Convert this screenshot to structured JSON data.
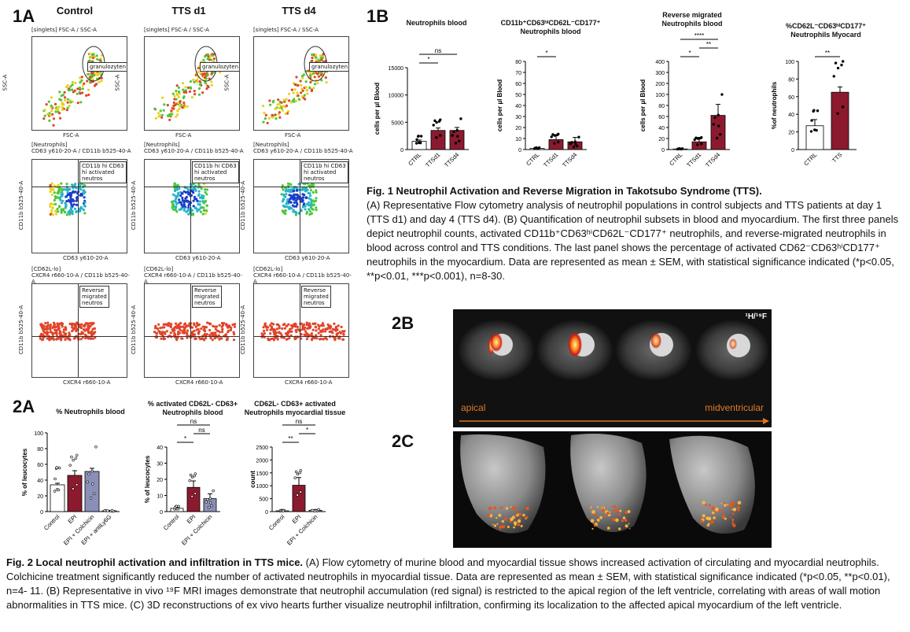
{
  "fig1": {
    "panel_a_label": "1A",
    "panel_b_label": "1B",
    "columns": [
      "Control",
      "TTS d1",
      "TTS d4"
    ],
    "flow_rows": [
      {
        "title": "[singlets] FSC-A / SSC-A",
        "x_label": "FSC-A",
        "y_label": "SSC-A",
        "gate": "granulozyten"
      },
      {
        "title": "[Neutrophils]\nCD63 y610-20-A / CD11b b525-40-A",
        "x_label": "CD63 y610-20-A",
        "y_label": "CD11b b525-40-A",
        "gate": "CD11b hi CD63\nhi activated\nneutros"
      },
      {
        "title": "[CD62L-lo]\nCXCR4 r660-10-A / CD11b b525-40-\nA",
        "x_label": "CXCR4 r660-10-A",
        "y_label": "CD11b b525-40-A",
        "gate": "Reverse\nmigrated\nneutros"
      }
    ],
    "caption_title": "Fig. 1 Neutrophil Activation and Reverse Migration in Takotsubo Syndrome (TTS).",
    "caption_body": "(A) Representative Flow cytometry analysis of neutrophil populations in control subjects and TTS patients at day 1 (TTS d1) and day 4 (TTS d4). (B) Quantification of neutrophil subsets in blood and myocardium. The first three panels depict neutrophil counts, activated  CD11b⁺CD63ʰⁱCD62L⁻CD177⁺ neutrophils, and reverse-migrated neutrophils in blood across control and TTS conditions. The last panel shows the percentage of activated CD62⁻CD63ʰⁱCD177⁺ neutrophils in the myocardium. Data are represented as mean ± SEM, with statistical significance indicated (*p<0.05, **p<0.01, ***p<0.001), n=8-30."
  },
  "fig2": {
    "panel_a_label": "2A",
    "panel_b_label": "2B",
    "panel_c_label": "2C",
    "mri_left_label": "apical",
    "mri_right_label": "midventricular",
    "mri_badge": "¹H/¹⁹F",
    "caption_title": "Fig. 2 Local neutrophil activation and infiltration in TTS mice.",
    "caption_body": " (A) Flow cytometry of murine blood and myocardial tissue shows increased activation of circulating and myocardial neutrophils. Colchicine treatment significantly reduced the number of activated neutrophils in myocardial tissue. Data are represented as mean ± SEM, with statistical significance indicated (*p<0.05, **p<0.01), n=4- 11. (B) Representative in vivo  ¹⁹F MRI images demonstrate that neutrophil accumulation (red signal) is restricted to the apical region of the left ventricle, correlating with areas of wall motion abnormalities in TTS mice. (C) 3D reconstructions of ex vivo hearts further visualize neutrophil infiltration, confirming its localization to the affected apical myocardium of the left ventricle."
  },
  "colors": {
    "ctrl": "#ffffff",
    "tts": "#8b1a2f",
    "colch": "#8a8fb8",
    "antily": "#ffffff"
  },
  "chart_data": [
    {
      "type": "bar",
      "id": "1b1",
      "title": "Neutrophils blood",
      "ylabel": "cells per µl Blood",
      "categories": [
        "CTRL",
        "TTSd1",
        "TTSd4"
      ],
      "values": [
        1500,
        3500,
        3500
      ],
      "errors": [
        250,
        450,
        550
      ],
      "ylim": [
        0,
        15000
      ],
      "yticks": [
        "0",
        "5000",
        "10000",
        "15000"
      ],
      "sig": [
        {
          "from": 0,
          "to": 1,
          "text": "*"
        },
        {
          "from": 0,
          "to": 2,
          "text": "ns"
        }
      ]
    },
    {
      "type": "bar",
      "id": "1b2",
      "title": "CD11b⁺CD63ʰⁱCD62L⁻CD177⁺\nNeutrophils blood",
      "ylabel": "cells per µl Blood",
      "categories": [
        "CTRL",
        "TTSd1",
        "TTSd4"
      ],
      "values": [
        1,
        9,
        7
      ],
      "errors": [
        0.5,
        4,
        4
      ],
      "yticks": [
        "0",
        "10",
        "20",
        "30",
        "40",
        "50",
        "60",
        "70",
        "80"
      ],
      "sig": [
        {
          "from": 0,
          "to": 1,
          "text": "*"
        }
      ]
    },
    {
      "type": "bar",
      "id": "1b3",
      "title": "Reverse migrated\nNeutrophils blood",
      "ylabel": "cells per µl Blood",
      "categories": [
        "CTRL",
        "TTSd1",
        "TTSd4"
      ],
      "values": [
        1,
        14,
        62
      ],
      "errors": [
        0.5,
        8,
        20
      ],
      "yticks": [
        "0",
        "20",
        "40",
        "60",
        "80",
        "100",
        "200",
        "300",
        "400"
      ],
      "sig": [
        {
          "from": 0,
          "to": 1,
          "text": "*"
        },
        {
          "from": 1,
          "to": 2,
          "text": "**"
        },
        {
          "from": 0,
          "to": 2,
          "text": "****"
        }
      ]
    },
    {
      "type": "bar",
      "id": "1b4",
      "title": "%CD62L⁻CD63ʰⁱCD177⁺\nNeutrophils Myocard",
      "ylabel": "%of neutrophils",
      "categories": [
        "CTRL",
        "TTS"
      ],
      "values": [
        27,
        65
      ],
      "errors": [
        7,
        6
      ],
      "ylim": [
        0,
        100
      ],
      "yticks": [
        "0",
        "20",
        "40",
        "60",
        "80",
        "100"
      ],
      "sig": [
        {
          "from": 0,
          "to": 1,
          "text": "**"
        }
      ]
    },
    {
      "type": "bar",
      "id": "2a1",
      "title": "% Neutrophils blood",
      "ylabel": "% of leucocytes",
      "categories": [
        "Control",
        "EPI",
        "EPI + Colchicin",
        "EPI + antiLy6G"
      ],
      "values": [
        34,
        46,
        51,
        1
      ],
      "errors": [
        2,
        6,
        4,
        0.5
      ],
      "ylim": [
        0,
        100
      ],
      "yticks": [
        "0",
        "20",
        "40",
        "60",
        "80",
        "100"
      ],
      "sig": []
    },
    {
      "type": "bar",
      "id": "2a2",
      "title": "% activated CD62L- CD63+\nNeutrophils blood",
      "ylabel": "% of leucocytes",
      "categories": [
        "Control",
        "EPI",
        "EPI + Colchicin"
      ],
      "values": [
        2,
        15,
        8
      ],
      "errors": [
        0.5,
        4,
        3
      ],
      "ylim": [
        0,
        40
      ],
      "yticks": [
        "0",
        "10",
        "20",
        "30",
        "40"
      ],
      "sig": [
        {
          "from": 0,
          "to": 1,
          "text": "*"
        },
        {
          "from": 1,
          "to": 2,
          "text": "ns"
        },
        {
          "from": 0,
          "to": 2,
          "text": "ns"
        }
      ]
    },
    {
      "type": "bar",
      "id": "2a3",
      "title": "CD62L- CD63+ activated\nNeutrophils myocardial tissue",
      "ylabel": "count",
      "categories": [
        "Control",
        "EPI",
        "EPI + Colchicin"
      ],
      "values": [
        30,
        1020,
        50
      ],
      "errors": [
        10,
        300,
        20
      ],
      "ylim": [
        0,
        2500
      ],
      "yticks": [
        "0",
        "500",
        "1000",
        "1500",
        "2000",
        "2500"
      ],
      "sig": [
        {
          "from": 0,
          "to": 1,
          "text": "**"
        },
        {
          "from": 1,
          "to": 2,
          "text": "*"
        },
        {
          "from": 0,
          "to": 2,
          "text": "ns"
        }
      ]
    }
  ]
}
